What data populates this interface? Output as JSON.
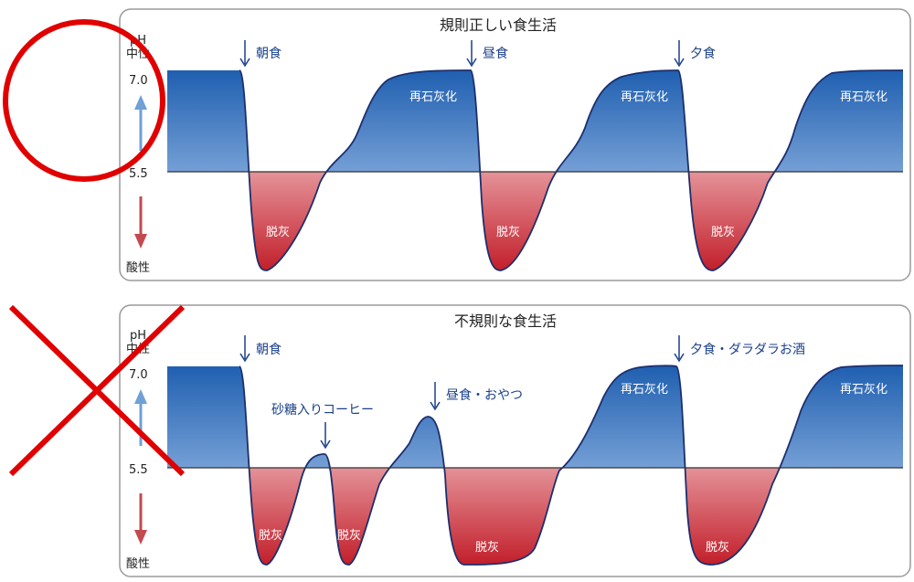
{
  "panels": [
    {
      "title": "規則正しい食生活",
      "verdict": "good",
      "meals": [
        {
          "label": "朝食"
        },
        {
          "label": "昼食"
        },
        {
          "label": "夕食"
        }
      ],
      "zone_labels": {
        "remineralization": [
          "再石灰化",
          "再石灰化",
          "再石灰化"
        ],
        "demineralization": [
          "脱灰",
          "脱灰",
          "脱灰"
        ]
      }
    },
    {
      "title": "不規則な食生活",
      "verdict": "bad",
      "meals": [
        {
          "label": "朝食"
        },
        {
          "label": "砂糖入りコーヒー"
        },
        {
          "label": "昼食・おやつ"
        },
        {
          "label": "夕食・ダラダラお酒"
        }
      ],
      "zone_labels": {
        "remineralization": [
          "再石灰化",
          "再石灰化"
        ],
        "demineralization": [
          "脱灰",
          "脱灰",
          "脱灰",
          "脱灰"
        ]
      }
    }
  ],
  "axis": {
    "ph_label": "pH",
    "neutral_label": "中性",
    "acidic_label": "酸性",
    "neutral_value": "7.0",
    "critical_value": "5.5"
  },
  "colors": {
    "remineralization": "#1f5fb0",
    "demineralization": "#c21f2a",
    "curve": "#1c2f6e",
    "mark": "#e00000"
  }
}
